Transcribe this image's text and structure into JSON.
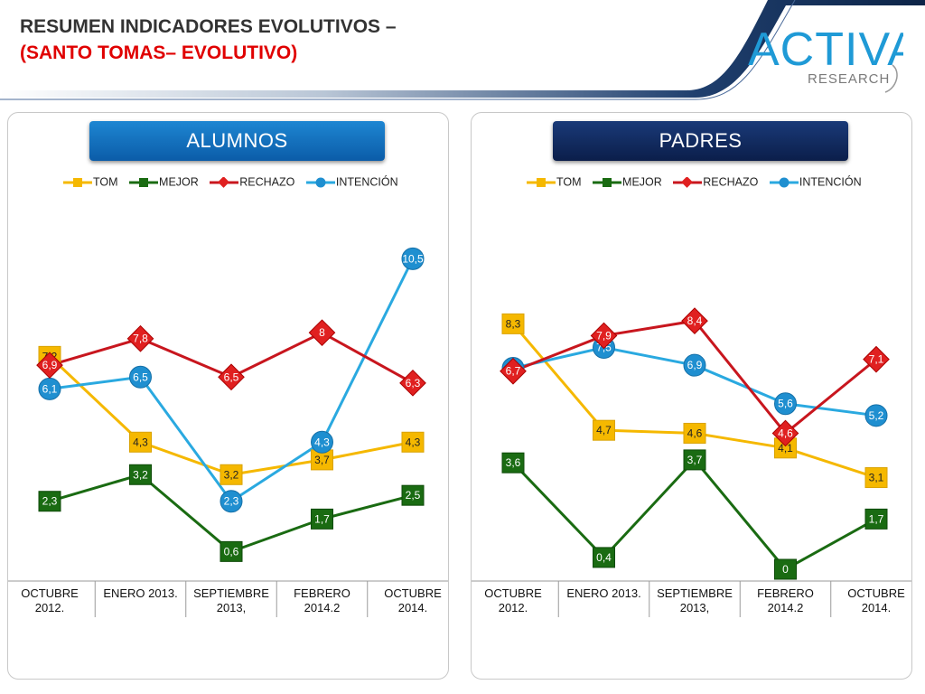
{
  "title": {
    "line1": "RESUMEN INDICADORES EVOLUTIVOS –",
    "line2": "(SANTO TOMAS– EVOLUTIVO)"
  },
  "logo": {
    "main": "ACTIVA",
    "sub": "RESEARCH"
  },
  "colors": {
    "tom": "#f5b800",
    "mejor": "#1a6b12",
    "rechazo": "#c8161e",
    "intencion": "#2aa9e0",
    "header_blue": "#1478c8",
    "header_navy": "#12306a",
    "title_red": "#e00000"
  },
  "panels": [
    {
      "header": "ALUMNOS",
      "legend": [
        "TOM",
        "MEJOR",
        "RECHAZO",
        "INTENCIÓN"
      ],
      "categories": [
        "OCTUBRE 2012.",
        "ENERO 2013.",
        "SEPTIEMBRE 2013,",
        "FEBRERO 2014.2",
        "OCTUBRE 2014."
      ],
      "category_lines": [
        [
          "OCTUBRE",
          "2012."
        ],
        [
          "ENERO 2013."
        ],
        [
          "SEPTIEMBRE",
          "2013,"
        ],
        [
          "FEBRERO",
          "2014.2"
        ],
        [
          "OCTUBRE",
          "2014."
        ]
      ]
    },
    {
      "header": "PADRES",
      "legend": [
        "TOM",
        "MEJOR",
        "RECHAZO",
        "INTENCIÓN"
      ],
      "categories": [
        "OCTUBRE 2012.",
        "ENERO 2013.",
        "SEPTIEMBRE 2013,",
        "FEBRERO 2014.2",
        "OCTUBRE 2014."
      ],
      "category_lines": [
        [
          "OCTUBRE",
          "2012."
        ],
        [
          "ENERO 2013."
        ],
        [
          "SEPTIEMBRE",
          "2013,"
        ],
        [
          "FEBRERO",
          "2014.2"
        ],
        [
          "OCTUBRE",
          "2014."
        ]
      ]
    }
  ],
  "chart_data": [
    {
      "type": "line",
      "title": "ALUMNOS",
      "categories": [
        "OCTUBRE 2012.",
        "ENERO 2013.",
        "SEPTIEMBRE 2013,",
        "FEBRERO 2014.2",
        "OCTUBRE 2014."
      ],
      "series": [
        {
          "name": "TOM",
          "values": [
            7.2,
            4.3,
            3.2,
            3.7,
            4.3
          ],
          "labels": [
            "7,2",
            "4,3",
            "3,2",
            "3,7",
            "4,3"
          ]
        },
        {
          "name": "MEJOR",
          "values": [
            2.3,
            3.2,
            0.6,
            1.7,
            2.5
          ],
          "labels": [
            "2,3",
            "3,2",
            "0,6",
            "1,7",
            "2,5"
          ]
        },
        {
          "name": "RECHAZO",
          "values": [
            6.9,
            7.8,
            6.5,
            8,
            6.3
          ],
          "labels": [
            "6,9",
            "7,8",
            "6,5",
            "8",
            "6,3"
          ]
        },
        {
          "name": "INTENCIÓN",
          "values": [
            6.1,
            6.5,
            2.3,
            4.3,
            10.5
          ],
          "labels": [
            "6,1",
            "6,5",
            "2,3",
            "4,3",
            "10,5"
          ]
        }
      ],
      "legend": "top",
      "grid": false
    },
    {
      "type": "line",
      "title": "PADRES",
      "categories": [
        "OCTUBRE 2012.",
        "ENERO 2013.",
        "SEPTIEMBRE 2013,",
        "FEBRERO 2014.2",
        "OCTUBRE 2014."
      ],
      "series": [
        {
          "name": "TOM",
          "values": [
            8.3,
            4.7,
            4.6,
            4.1,
            3.1
          ],
          "labels": [
            "8,3",
            "4,7",
            "4,6",
            "4,1",
            "3,1"
          ]
        },
        {
          "name": "MEJOR",
          "values": [
            3.6,
            0.4,
            3.7,
            0,
            1.7
          ],
          "labels": [
            "3,6",
            "0,4",
            "3,7",
            "0",
            "1,7"
          ]
        },
        {
          "name": "RECHAZO",
          "values": [
            6.7,
            7.9,
            8.4,
            4.6,
            7.1
          ],
          "labels": [
            "6,7",
            "7,9",
            "8,4",
            "4,6",
            "7,1"
          ]
        },
        {
          "name": "INTENCIÓN",
          "values": [
            6.8,
            7.5,
            6.9,
            5.6,
            5.2
          ],
          "labels": [
            "6,8",
            "7,5",
            "6,9",
            "5,6",
            "5,2"
          ]
        }
      ],
      "legend": "top",
      "grid": false
    }
  ]
}
